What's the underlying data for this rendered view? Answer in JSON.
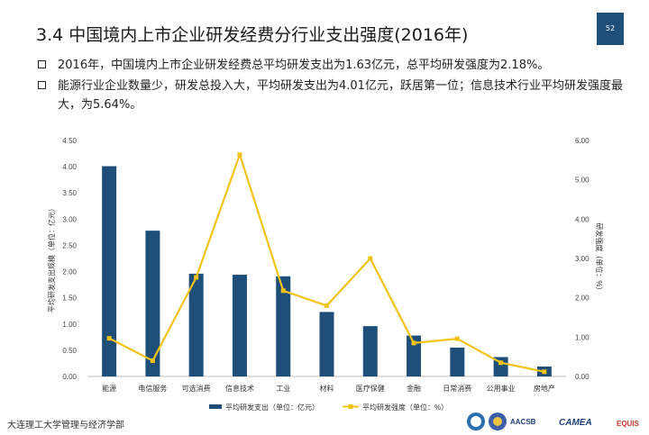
{
  "page": {
    "title": "3.4  中国境内上市企业研发经费分行业支出强度(2016年)",
    "page_number": "52",
    "bullets": [
      "2016年，中国境内上市企业研发经费总平均研发支出为1.63亿元，总平均研发强度为2.18%。",
      "能源行业企业数量少，研发总投入大，平均研发支出为4.01亿元，跃居第一位；信息技术行业平均研发强度最大，为5.64%。"
    ],
    "footer": "大连理工大学管理与经济学部",
    "logos": [
      "AACSB ACCREDITED",
      "CAMEA",
      "EQUIS"
    ]
  },
  "colors": {
    "bar": "#1f4e79",
    "line": "#f2c314",
    "title_bar": "#1f4e79"
  },
  "chart_data": {
    "type": "bar",
    "categories": [
      "能源",
      "电信服务",
      "可选消费",
      "信息技术",
      "工业",
      "材料",
      "医疗保健",
      "金融",
      "日常消费",
      "公用事业",
      "房地产"
    ],
    "series": [
      {
        "name": "平均研发支出（单位：亿元）",
        "type": "bar",
        "axis": "left",
        "values": [
          4.01,
          2.78,
          1.96,
          1.94,
          1.91,
          1.23,
          0.96,
          0.78,
          0.55,
          0.37,
          0.19
        ]
      },
      {
        "name": "平均研发强度（单位：%）",
        "type": "line",
        "axis": "right",
        "values": [
          0.97,
          0.4,
          2.52,
          5.64,
          2.18,
          1.8,
          3.0,
          0.85,
          0.96,
          0.35,
          0.12
        ]
      }
    ],
    "ylabel": "平均研发支出规模（单位：亿元）",
    "y2label": "研发强度（单位：%）",
    "ylim": [
      0,
      4.5
    ],
    "yticks": [
      "0.00",
      "0.50",
      "1.00",
      "1.50",
      "2.00",
      "2.50",
      "3.00",
      "3.50",
      "4.00",
      "4.50"
    ],
    "y2lim": [
      0,
      6
    ],
    "y2ticks": [
      "0.00",
      "1.00",
      "2.00",
      "3.00",
      "4.00",
      "5.00",
      "6.00"
    ],
    "legend_position": "bottom",
    "grid": false
  }
}
